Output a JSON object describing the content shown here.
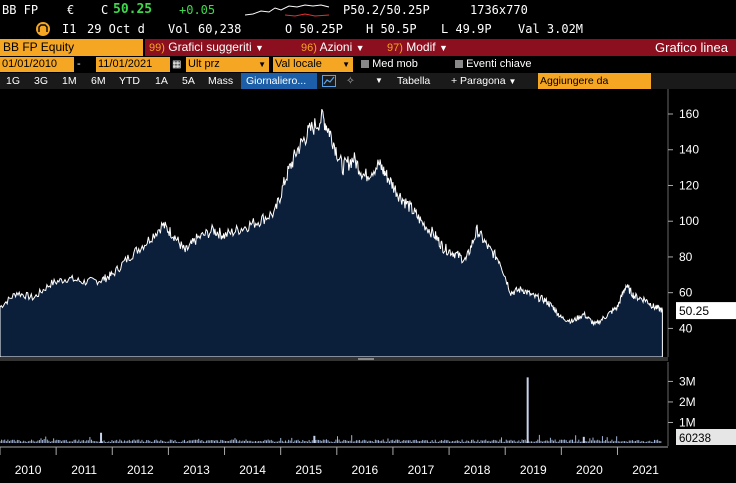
{
  "header": {
    "ticker": "BB FP",
    "currency": "€",
    "close_label": "C",
    "close_value": "50.25",
    "change": "+0.05",
    "bid_ask": "P50.2/50.25P",
    "size": "1736x770",
    "market_code": "I1",
    "date": "29 Oct d",
    "vol_label": "Vol",
    "volume": "60,238",
    "open": "O 50.25P",
    "high": "H 50.5P",
    "low": "L 49.9P",
    "val": "Val  3.02M"
  },
  "toolbar": {
    "security": "BB FP Equity",
    "menu1_num": "99)",
    "menu1_label": "Grafici suggeriti",
    "menu2_num": "96)",
    "menu2_label": "Azioni",
    "menu3_num": "97)",
    "menu3_label": "Modif",
    "chart_type": "Grafico linea"
  },
  "filters": {
    "date_from": "01/01/2010",
    "date_to": "11/01/2021",
    "price_field": "Ult prz",
    "currency_field": "Val locale",
    "moving_avg": "Med mob",
    "key_events": "Eventi chiave"
  },
  "periods": {
    "items": [
      "1G",
      "3G",
      "1M",
      "6M",
      "YTD",
      "1A",
      "5A",
      "Mass"
    ],
    "frequency": "Giornaliero...",
    "table": "Tabella",
    "compare": "+ Paragona",
    "add_from": "Aggiungere da"
  },
  "colors": {
    "orange": "#f5a623",
    "red_bar": "#8b0f1e",
    "chart_fill": "#0b1e3a",
    "selected_blue": "#1c5fa8"
  },
  "chart_data": {
    "type": "area",
    "price_axis_ticks": [
      40,
      60,
      80,
      100,
      120,
      140,
      160
    ],
    "last_price": "50.25",
    "volume_axis_ticks": [
      "1M",
      "2M",
      "3M"
    ],
    "last_volume": "60238",
    "x_tick_labels": [
      "2010",
      "2011",
      "2012",
      "2013",
      "2014",
      "2015",
      "2016",
      "2017",
      "2018",
      "2019",
      "2020",
      "2021"
    ],
    "price_series": [
      [
        2010.0,
        52
      ],
      [
        2010.3,
        60
      ],
      [
        2010.6,
        57
      ],
      [
        2010.9,
        65
      ],
      [
        2011.2,
        68
      ],
      [
        2011.5,
        66
      ],
      [
        2011.8,
        67
      ],
      [
        2012.0,
        70
      ],
      [
        2012.3,
        80
      ],
      [
        2012.6,
        88
      ],
      [
        2012.9,
        98
      ],
      [
        2013.1,
        92
      ],
      [
        2013.3,
        83
      ],
      [
        2013.5,
        90
      ],
      [
        2013.8,
        95
      ],
      [
        2014.0,
        92
      ],
      [
        2014.3,
        96
      ],
      [
        2014.6,
        100
      ],
      [
        2014.9,
        105
      ],
      [
        2015.1,
        125
      ],
      [
        2015.3,
        140
      ],
      [
        2015.5,
        150
      ],
      [
        2015.75,
        158
      ],
      [
        2015.9,
        148
      ],
      [
        2016.1,
        130
      ],
      [
        2016.3,
        135
      ],
      [
        2016.5,
        125
      ],
      [
        2016.75,
        132
      ],
      [
        2016.9,
        125
      ],
      [
        2017.1,
        115
      ],
      [
        2017.3,
        108
      ],
      [
        2017.5,
        100
      ],
      [
        2017.75,
        92
      ],
      [
        2017.9,
        85
      ],
      [
        2018.1,
        82
      ],
      [
        2018.3,
        78
      ],
      [
        2018.5,
        95
      ],
      [
        2018.7,
        85
      ],
      [
        2018.9,
        78
      ],
      [
        2019.1,
        60
      ],
      [
        2019.3,
        62
      ],
      [
        2019.5,
        58
      ],
      [
        2019.7,
        56
      ],
      [
        2019.85,
        52
      ],
      [
        2020.0,
        46
      ],
      [
        2020.2,
        44
      ],
      [
        2020.4,
        48
      ],
      [
        2020.6,
        42
      ],
      [
        2020.8,
        47
      ],
      [
        2021.0,
        52
      ],
      [
        2021.15,
        64
      ],
      [
        2021.3,
        58
      ],
      [
        2021.5,
        56
      ],
      [
        2021.65,
        52
      ],
      [
        2021.8,
        50.25
      ]
    ],
    "volume_spikes": [
      [
        2019.4,
        3200000
      ],
      [
        2011.8,
        500000
      ],
      [
        2015.6,
        350000
      ],
      [
        2020.4,
        300000
      ]
    ]
  }
}
